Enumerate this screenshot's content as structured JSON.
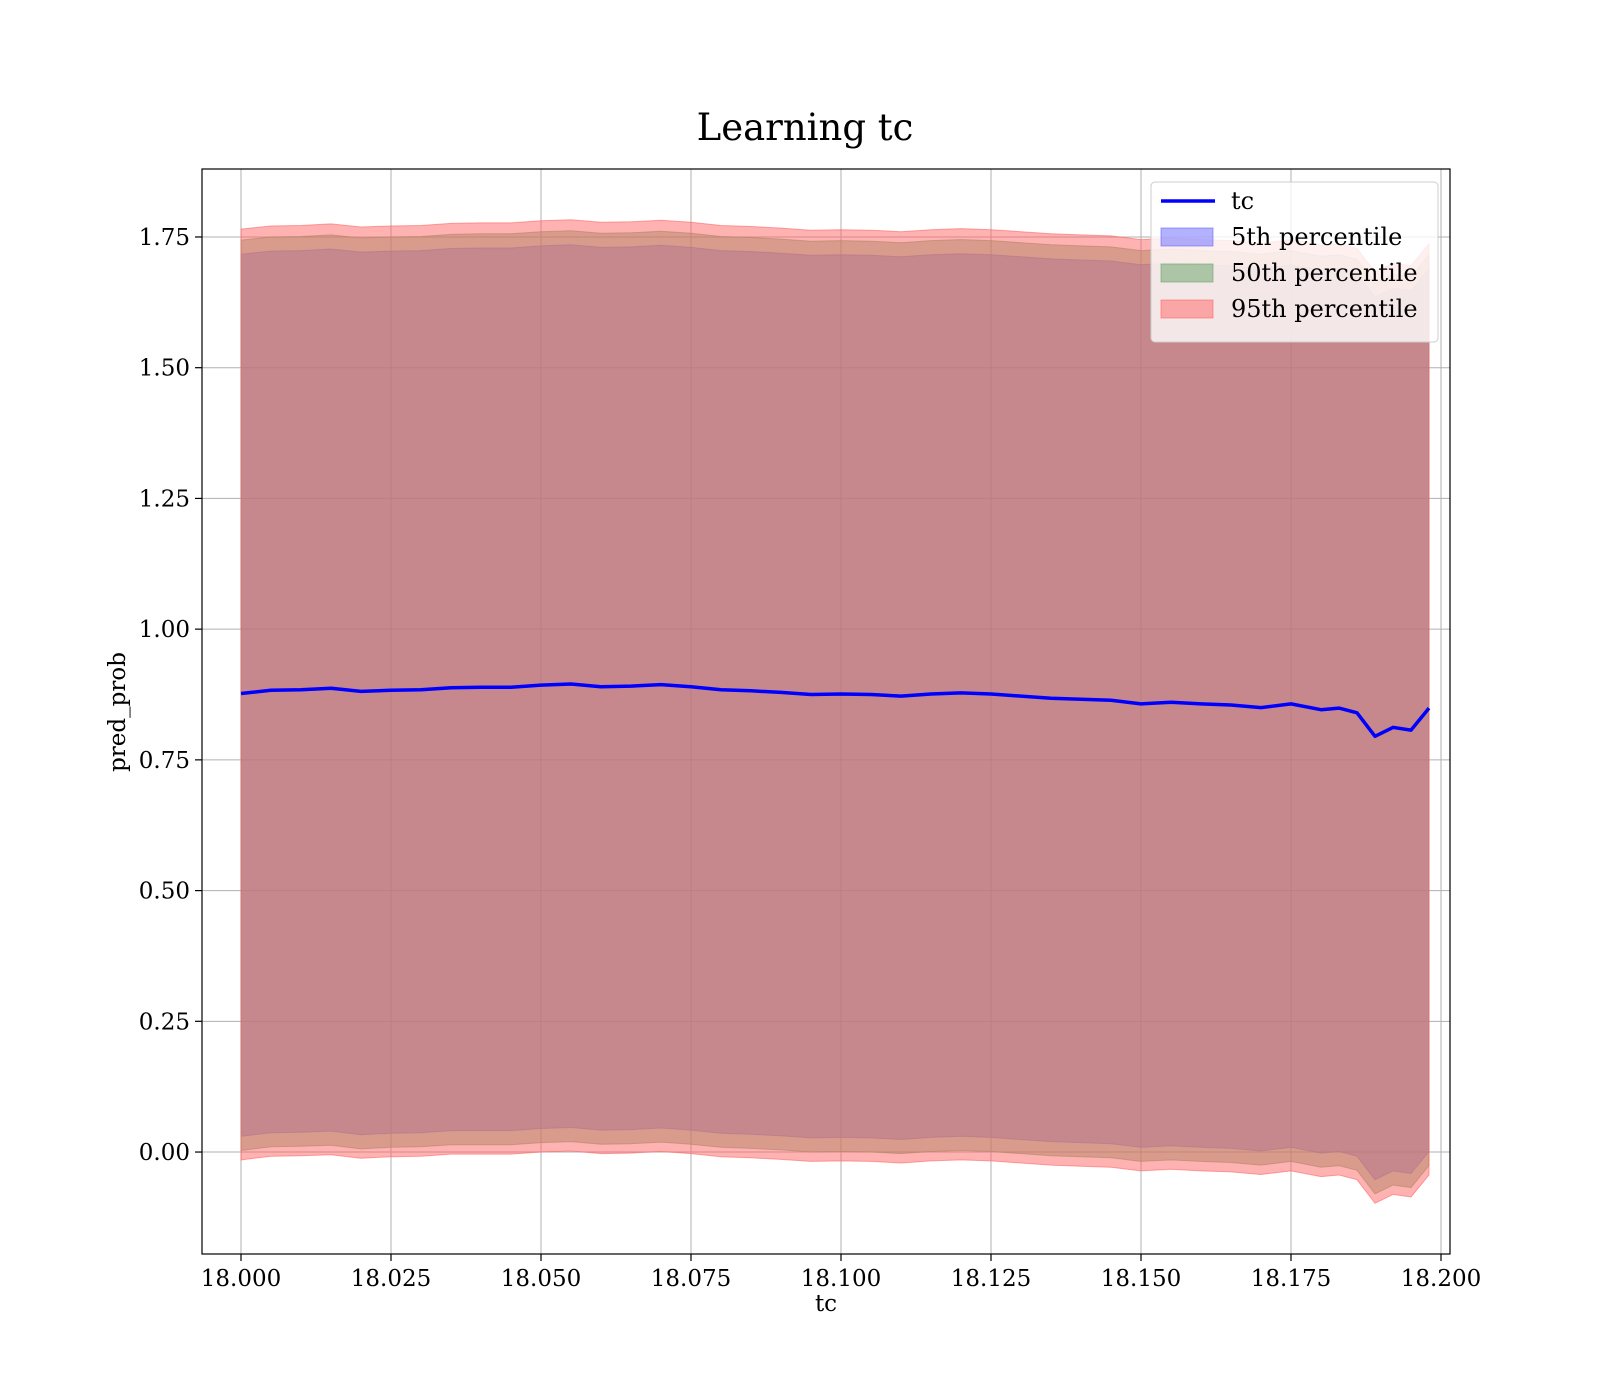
{
  "chart_data": {
    "type": "line",
    "title": "Learning tc",
    "xlabel": "tc",
    "ylabel": "pred_prob",
    "xlim": [
      17.9935,
      18.2015
    ],
    "ylim": [
      -0.195,
      1.88
    ],
    "grid": true,
    "legend_position": "top-right",
    "x_ticks": [
      "18.000",
      "18.025",
      "18.050",
      "18.075",
      "18.100",
      "18.125",
      "18.150",
      "18.175",
      "18.200"
    ],
    "y_ticks": [
      "0.00",
      "0.25",
      "0.50",
      "0.75",
      "1.00",
      "1.25",
      "1.50",
      "1.75"
    ],
    "x": [
      18.0,
      18.005,
      18.01,
      18.015,
      18.02,
      18.025,
      18.03,
      18.035,
      18.04,
      18.045,
      18.05,
      18.055,
      18.06,
      18.065,
      18.07,
      18.075,
      18.08,
      18.085,
      18.09,
      18.095,
      18.1,
      18.105,
      18.11,
      18.115,
      18.12,
      18.125,
      18.13,
      18.135,
      18.14,
      18.145,
      18.15,
      18.155,
      18.16,
      18.165,
      18.17,
      18.175,
      18.18,
      18.183,
      18.186,
      18.189,
      18.192,
      18.195,
      18.198
    ],
    "series": [
      {
        "name": "tc",
        "kind": "line",
        "color": "#0000ff",
        "values": [
          0.877,
          0.883,
          0.884,
          0.887,
          0.881,
          0.883,
          0.884,
          0.888,
          0.889,
          0.889,
          0.893,
          0.895,
          0.89,
          0.891,
          0.894,
          0.89,
          0.884,
          0.882,
          0.879,
          0.875,
          0.876,
          0.875,
          0.872,
          0.876,
          0.878,
          0.876,
          0.872,
          0.868,
          0.866,
          0.864,
          0.857,
          0.86,
          0.857,
          0.855,
          0.85,
          0.857,
          0.846,
          0.849,
          0.84,
          0.795,
          0.812,
          0.807,
          0.849
        ]
      },
      {
        "name": "5th percentile",
        "kind": "band",
        "color": "#6666ff",
        "lower": [
          0.03,
          0.037,
          0.038,
          0.04,
          0.033,
          0.036,
          0.037,
          0.041,
          0.041,
          0.041,
          0.045,
          0.047,
          0.042,
          0.043,
          0.046,
          0.042,
          0.036,
          0.034,
          0.031,
          0.027,
          0.028,
          0.027,
          0.024,
          0.028,
          0.03,
          0.028,
          0.024,
          0.02,
          0.018,
          0.016,
          0.009,
          0.012,
          0.009,
          0.007,
          0.002,
          0.009,
          -0.002,
          0.001,
          -0.008,
          -0.053,
          -0.036,
          -0.041,
          0.001
        ],
        "upper": [
          1.717,
          1.723,
          1.724,
          1.727,
          1.721,
          1.723,
          1.724,
          1.728,
          1.729,
          1.729,
          1.733,
          1.735,
          1.73,
          1.731,
          1.734,
          1.73,
          1.724,
          1.722,
          1.719,
          1.715,
          1.716,
          1.715,
          1.712,
          1.716,
          1.718,
          1.716,
          1.712,
          1.708,
          1.706,
          1.704,
          1.697,
          1.7,
          1.697,
          1.695,
          1.69,
          1.697,
          1.686,
          1.689,
          1.68,
          1.635,
          1.652,
          1.647,
          1.689
        ]
      },
      {
        "name": "50th percentile",
        "kind": "band",
        "color": "#66a366",
        "lower": [
          0.003,
          0.01,
          0.011,
          0.013,
          0.006,
          0.009,
          0.01,
          0.014,
          0.014,
          0.014,
          0.018,
          0.02,
          0.015,
          0.016,
          0.019,
          0.015,
          0.009,
          0.007,
          0.004,
          0.0,
          0.001,
          0.0,
          -0.003,
          0.001,
          0.003,
          0.001,
          -0.003,
          -0.007,
          -0.009,
          -0.011,
          -0.018,
          -0.015,
          -0.018,
          -0.02,
          -0.025,
          -0.018,
          -0.029,
          -0.026,
          -0.035,
          -0.08,
          -0.063,
          -0.068,
          -0.026
        ],
        "upper": [
          1.744,
          1.75,
          1.751,
          1.754,
          1.748,
          1.75,
          1.751,
          1.755,
          1.756,
          1.756,
          1.76,
          1.762,
          1.757,
          1.758,
          1.761,
          1.757,
          1.751,
          1.749,
          1.746,
          1.742,
          1.743,
          1.742,
          1.739,
          1.743,
          1.745,
          1.743,
          1.739,
          1.735,
          1.733,
          1.731,
          1.724,
          1.727,
          1.724,
          1.722,
          1.717,
          1.724,
          1.713,
          1.716,
          1.707,
          1.662,
          1.679,
          1.674,
          1.716
        ]
      },
      {
        "name": "95th percentile",
        "kind": "band",
        "color": "#ff6666",
        "lower": [
          -0.015,
          -0.008,
          -0.007,
          -0.005,
          -0.012,
          -0.009,
          -0.008,
          -0.004,
          -0.004,
          -0.004,
          0.0,
          0.002,
          -0.003,
          -0.002,
          0.001,
          -0.003,
          -0.009,
          -0.011,
          -0.014,
          -0.018,
          -0.017,
          -0.018,
          -0.021,
          -0.017,
          -0.015,
          -0.017,
          -0.021,
          -0.025,
          -0.027,
          -0.029,
          -0.036,
          -0.033,
          -0.036,
          -0.038,
          -0.043,
          -0.036,
          -0.047,
          -0.044,
          -0.053,
          -0.098,
          -0.081,
          -0.086,
          -0.044
        ],
        "upper": [
          1.765,
          1.771,
          1.772,
          1.775,
          1.769,
          1.771,
          1.772,
          1.776,
          1.777,
          1.777,
          1.781,
          1.783,
          1.778,
          1.779,
          1.782,
          1.778,
          1.772,
          1.77,
          1.767,
          1.763,
          1.764,
          1.763,
          1.76,
          1.764,
          1.766,
          1.764,
          1.76,
          1.756,
          1.754,
          1.752,
          1.745,
          1.748,
          1.745,
          1.743,
          1.738,
          1.745,
          1.734,
          1.737,
          1.728,
          1.683,
          1.7,
          1.695,
          1.737
        ]
      }
    ],
    "legend": [
      {
        "label": "tc",
        "kind": "line",
        "color": "#0000ff"
      },
      {
        "label": "5th percentile",
        "kind": "band",
        "color": "#6666ff"
      },
      {
        "label": "50th percentile",
        "kind": "band",
        "color": "#66a366"
      },
      {
        "label": "95th percentile",
        "kind": "band",
        "color": "#ff6666"
      }
    ]
  }
}
